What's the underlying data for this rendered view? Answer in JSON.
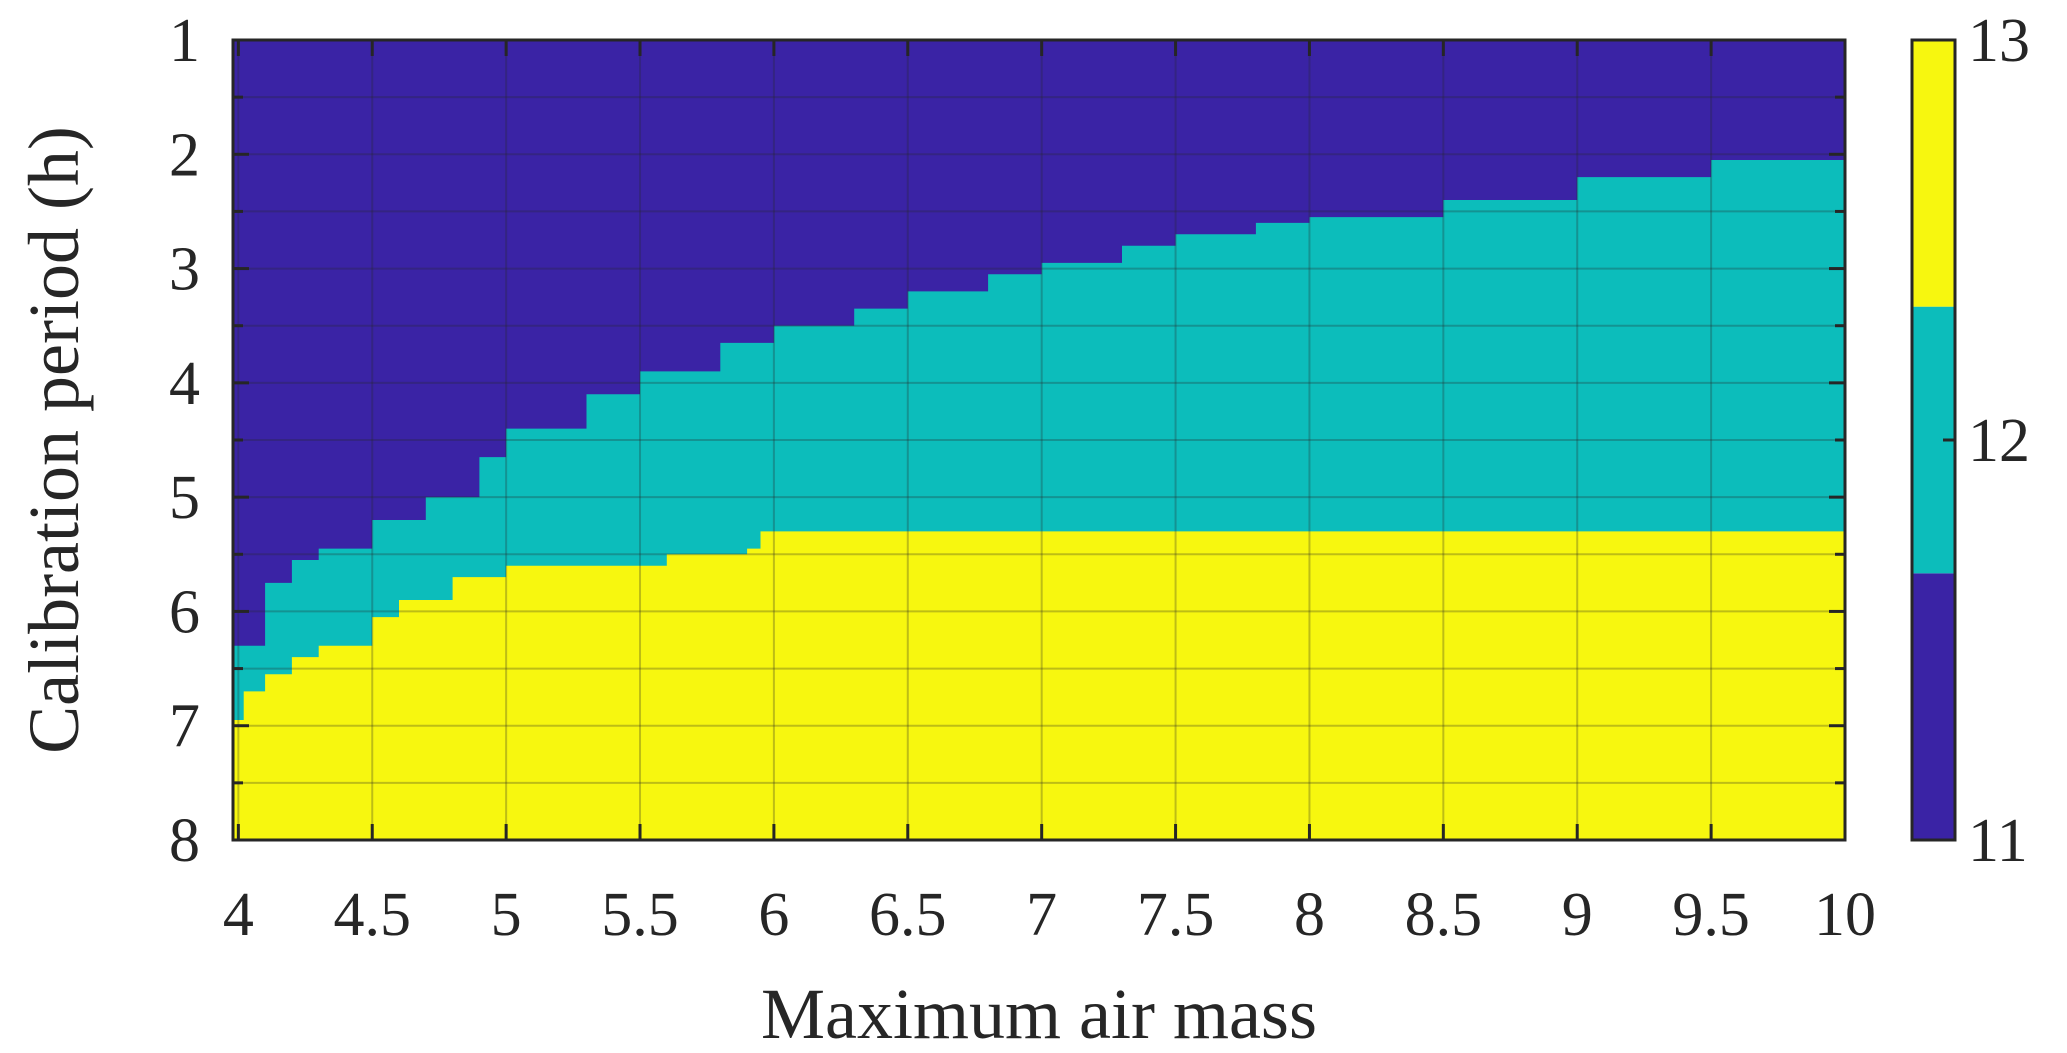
{
  "chart_data": {
    "type": "heatmap",
    "title": "",
    "xlabel": "Maximum air mass",
    "ylabel": "Calibration period (h)",
    "x_ticks": [
      "4",
      "4.5",
      "5",
      "5.5",
      "6",
      "6.5",
      "7",
      "7.5",
      "8",
      "8.5",
      "9",
      "9.5",
      "10"
    ],
    "y_ticks": [
      "1",
      "2",
      "3",
      "4",
      "5",
      "6",
      "7",
      "8"
    ],
    "xlim": [
      3.98,
      10
    ],
    "ylim": [
      8,
      1
    ],
    "y_reversed": true,
    "grid": true,
    "colorbar": {
      "ticks": [
        "11",
        "12",
        "13"
      ],
      "range": [
        11,
        13
      ],
      "colors": [
        "#3a23a5",
        "#0cbdbb",
        "#f7f70f"
      ]
    },
    "levels": [
      11,
      12,
      13
    ],
    "boundary_11_12": {
      "x": [
        3.98,
        4.1,
        4.2,
        4.3,
        4.5,
        4.7,
        4.9,
        5.0,
        5.3,
        5.5,
        5.8,
        6.0,
        6.3,
        6.5,
        6.8,
        7.0,
        7.3,
        7.5,
        7.8,
        8.0,
        8.5,
        9.0,
        9.5,
        10.0
      ],
      "y": [
        6.3,
        5.75,
        5.55,
        5.45,
        5.2,
        5.0,
        4.65,
        4.4,
        4.1,
        3.9,
        3.65,
        3.5,
        3.35,
        3.2,
        3.05,
        2.95,
        2.8,
        2.7,
        2.6,
        2.55,
        2.4,
        2.2,
        2.05,
        1.95
      ]
    },
    "boundary_12_13": {
      "x": [
        3.98,
        4.02,
        4.1,
        4.2,
        4.3,
        4.5,
        4.6,
        4.8,
        5.0,
        5.5,
        5.6,
        5.9,
        5.95,
        10.0
      ],
      "y": [
        6.95,
        6.7,
        6.55,
        6.4,
        6.3,
        6.05,
        5.9,
        5.7,
        5.6,
        5.6,
        5.5,
        5.45,
        5.3,
        5.3
      ]
    }
  }
}
